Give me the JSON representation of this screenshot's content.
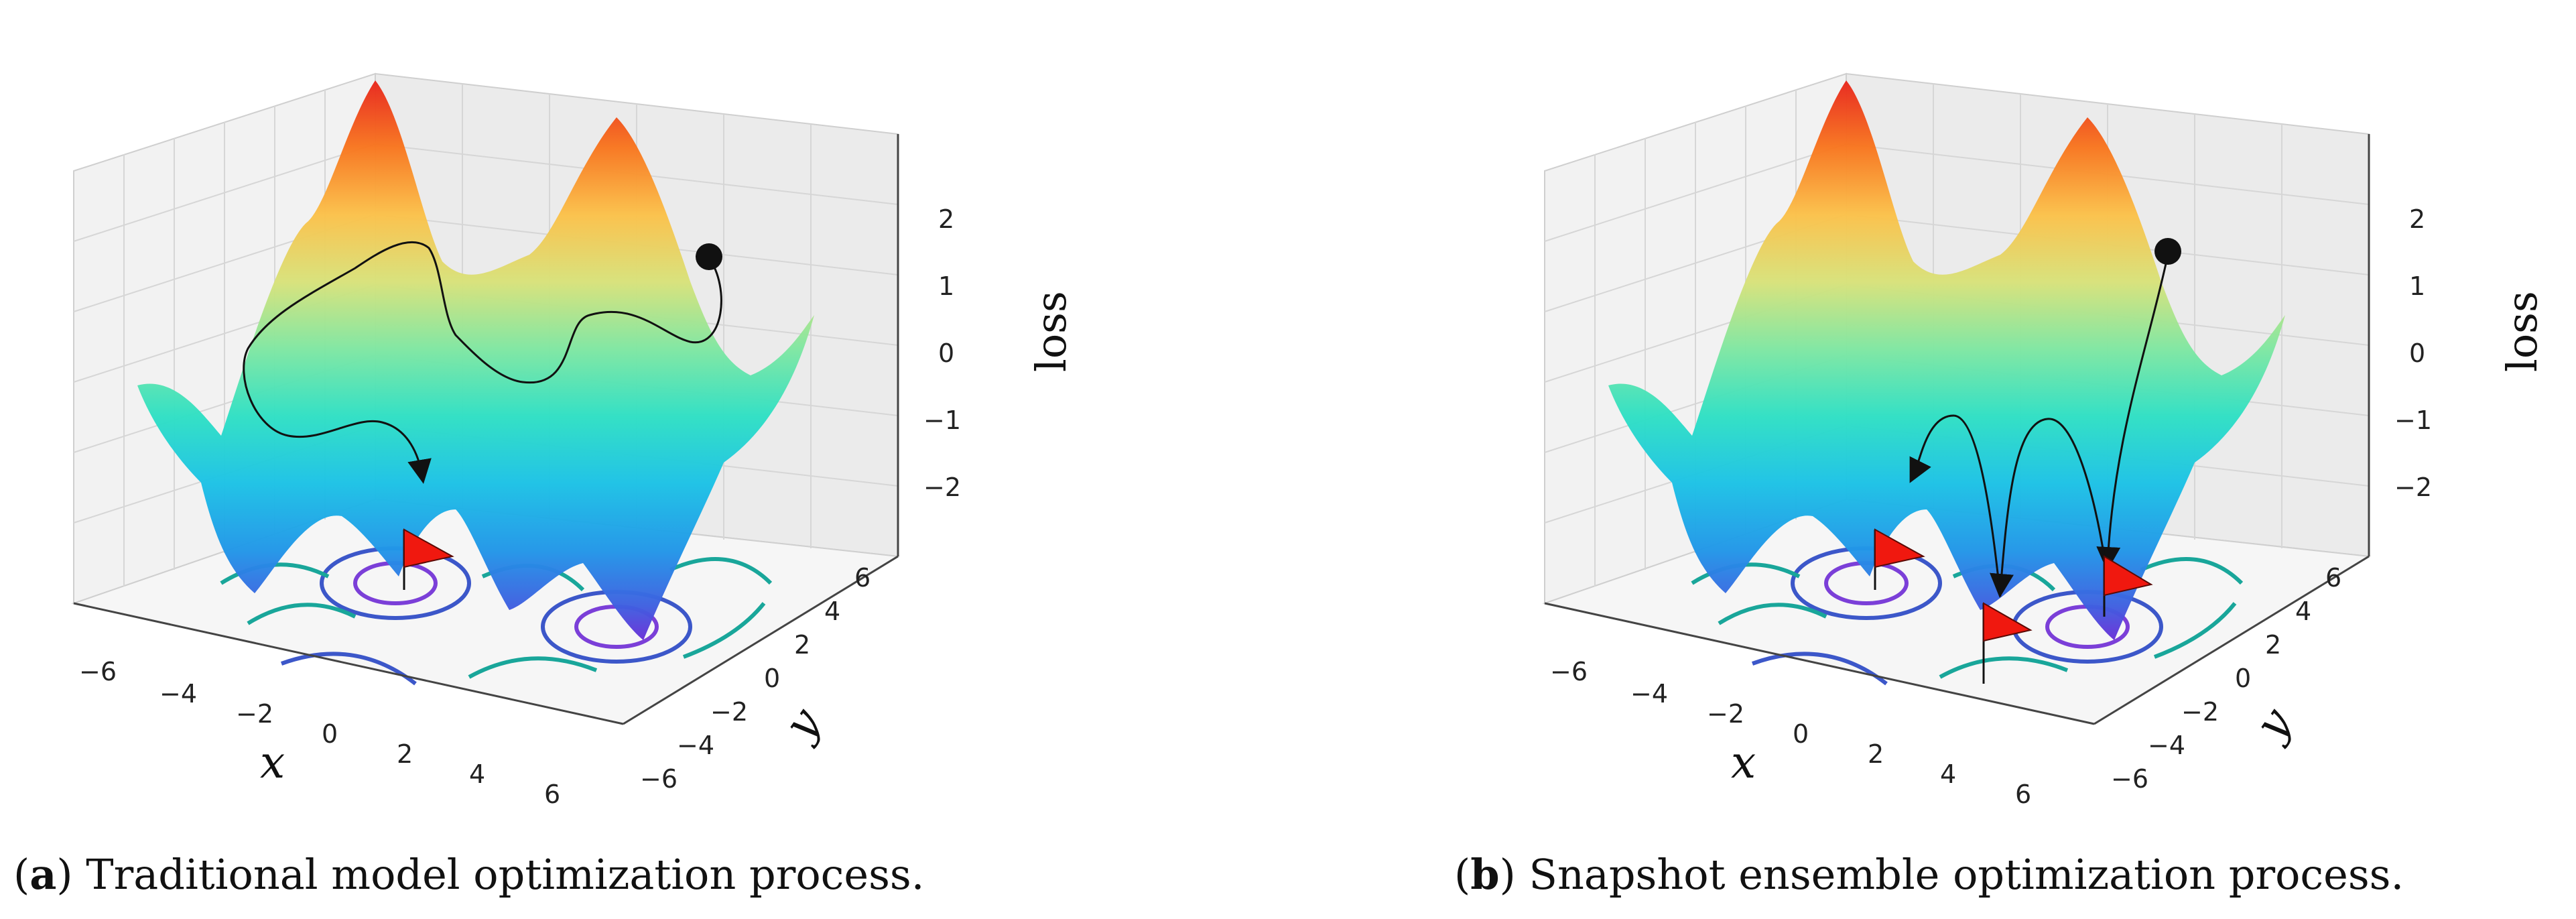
{
  "panels": [
    {
      "id": "a",
      "caption_letter": "a",
      "caption_text": "Traditional model optimization process.",
      "z_label": "loss",
      "x_label": "x",
      "y_label": "y",
      "x_ticks": [
        "−6",
        "−4",
        "−2",
        "0",
        "2",
        "4",
        "6"
      ],
      "y_ticks": [
        "−6",
        "−4",
        "−2",
        "0",
        "2",
        "4",
        "6"
      ],
      "z_ticks": [
        "2",
        "1",
        "0",
        "−1",
        "−2"
      ]
    },
    {
      "id": "b",
      "caption_letter": "b",
      "caption_text": "Snapshot ensemble optimization process.",
      "z_label": "loss",
      "x_label": "x",
      "y_label": "y",
      "x_ticks": [
        "−6",
        "−4",
        "−2",
        "0",
        "2",
        "4",
        "6"
      ],
      "y_ticks": [
        "−6",
        "−4",
        "−2",
        "0",
        "2",
        "4",
        "6"
      ],
      "z_ticks": [
        "2",
        "1",
        "0",
        "−1",
        "−2"
      ]
    }
  ],
  "chart_data": [
    {
      "type": "surface",
      "x_range": [
        -6,
        6
      ],
      "y_range": [
        -6,
        6
      ],
      "z_ticks": [
        2,
        1,
        0,
        -1,
        -2
      ],
      "grid": true,
      "colormap": "rainbow",
      "optimizer_paths": 1,
      "flags_marked": 1
    },
    {
      "type": "surface",
      "x_range": [
        -6,
        6
      ],
      "y_range": [
        -6,
        6
      ],
      "z_ticks": [
        2,
        1,
        0,
        -1,
        -2
      ],
      "grid": true,
      "colormap": "rainbow",
      "optimizer_paths": 3,
      "flags_marked": 3
    }
  ]
}
